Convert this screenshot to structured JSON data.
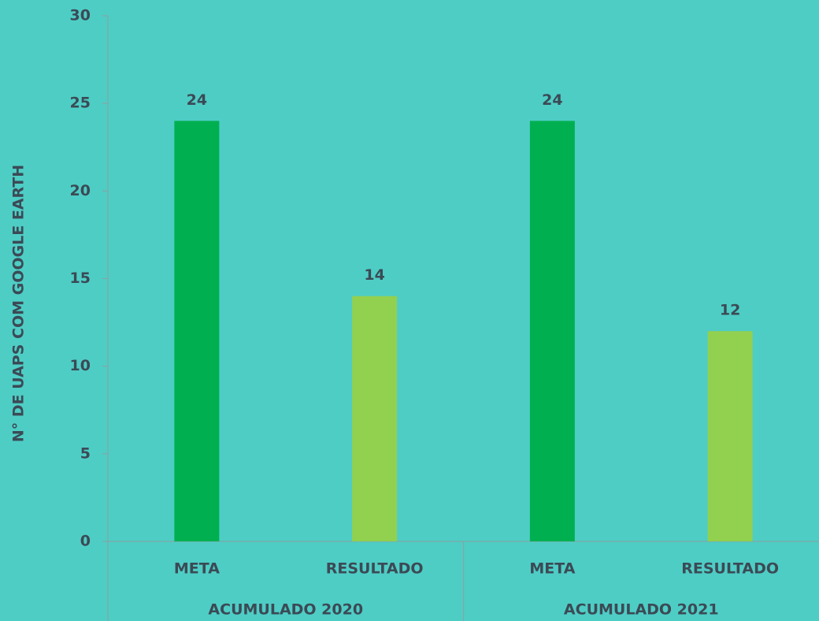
{
  "chart_data": {
    "type": "bar",
    "y_label": "N° DE UAPS COM GOOGLE EARTH",
    "categories": [
      "META",
      "RESULTADO",
      "META",
      "RESULTADO"
    ],
    "groups": [
      "ACUMULADO 2020",
      "ACUMULADO 2021"
    ],
    "values": [
      24,
      14,
      24,
      12
    ],
    "colors": [
      "#00b050",
      "#92d050",
      "#00b050",
      "#92d050"
    ],
    "ylim": [
      0,
      30
    ],
    "yticks": [
      0,
      5,
      10,
      15,
      20,
      25,
      30
    ],
    "grid": false
  }
}
